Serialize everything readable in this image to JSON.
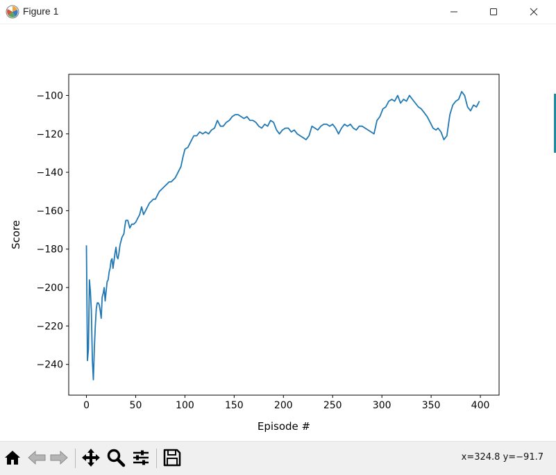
{
  "window": {
    "title": "Figure 1",
    "icon": "matplotlib-figure-icon",
    "controls": [
      "minimize-icon",
      "maximize-icon",
      "close-icon"
    ]
  },
  "toolbar": {
    "tools": [
      "home-icon",
      "back-arrow-icon",
      "forward-arrow-icon",
      "pan-move-icon",
      "zoom-magnifier-icon",
      "configure-subplots-icon",
      "save-floppy-icon"
    ],
    "coords": "x=324.8 y=−91.7"
  },
  "chart_data": {
    "type": "line",
    "title": "",
    "xlabel": "Episode #",
    "ylabel": "Score",
    "xlim": [
      -18,
      419
    ],
    "ylim": [
      -256,
      -89
    ],
    "xticks": [
      0,
      50,
      100,
      150,
      200,
      250,
      300,
      350,
      400
    ],
    "yticks": [
      -240,
      -220,
      -200,
      -180,
      -160,
      -140,
      -120,
      -100
    ],
    "grid": false,
    "line_color": "#1f77b4",
    "series": [
      {
        "x": [
          0,
          1,
          2,
          3,
          4,
          5,
          6,
          7,
          8,
          9,
          10,
          11,
          12,
          13,
          14,
          15,
          16,
          17,
          18,
          19,
          20,
          21,
          22,
          23,
          24,
          25,
          26,
          27,
          28,
          29,
          30,
          31,
          32,
          33,
          34,
          35,
          36,
          37,
          38,
          39,
          40,
          42,
          44,
          46,
          48,
          50,
          52,
          54,
          56,
          58,
          60,
          62,
          64,
          66,
          68,
          70,
          72,
          74,
          76,
          78,
          80,
          82,
          84,
          86,
          88,
          90,
          92,
          94,
          96,
          98,
          100,
          103,
          106,
          109,
          112,
          115,
          118,
          121,
          124,
          127,
          130,
          133,
          136,
          139,
          142,
          145,
          148,
          151,
          154,
          157,
          160,
          163,
          166,
          169,
          172,
          175,
          178,
          181,
          184,
          187,
          190,
          193,
          196,
          199,
          202,
          205,
          208,
          211,
          214,
          217,
          220,
          223,
          226,
          229,
          232,
          235,
          238,
          241,
          244,
          247,
          250,
          253,
          256,
          259,
          262,
          265,
          268,
          271,
          274,
          277,
          280,
          283,
          286,
          289,
          292,
          295,
          298,
          301,
          304,
          307,
          310,
          313,
          316,
          319,
          322,
          325,
          328,
          331,
          334,
          337,
          340,
          343,
          346,
          349,
          352,
          355,
          357,
          360,
          363,
          366,
          369,
          372,
          375,
          378,
          381,
          384,
          387,
          390,
          393,
          396,
          399
        ],
        "values": [
          -178,
          -238,
          -232,
          -196,
          -202,
          -212,
          -238,
          -248,
          -232,
          -220,
          -211,
          -208,
          -208,
          -209,
          -212,
          -216,
          -205,
          -203,
          -200,
          -207,
          -202,
          -197,
          -196,
          -192,
          -190,
          -186,
          -185,
          -190,
          -186,
          -182,
          -179,
          -184,
          -185,
          -182,
          -178,
          -176,
          -174,
          -173,
          -172,
          -168,
          -165,
          -165,
          -169,
          -167,
          -167,
          -166,
          -164,
          -162,
          -158,
          -162,
          -160,
          -158,
          -156,
          -155,
          -154,
          -154,
          -152,
          -150,
          -149,
          -148,
          -147,
          -146,
          -145,
          -145,
          -144,
          -143,
          -141,
          -139,
          -137,
          -132,
          -128,
          -127,
          -124,
          -121,
          -121,
          -119,
          -120,
          -119,
          -120,
          -118,
          -117,
          -113,
          -116,
          -116,
          -114,
          -113,
          -111,
          -110,
          -110,
          -111,
          -112,
          -111,
          -113,
          -113,
          -114,
          -116,
          -117,
          -115,
          -116,
          -113,
          -114,
          -118,
          -120,
          -118,
          -117,
          -117,
          -119,
          -118,
          -120,
          -121,
          -122,
          -123,
          -121,
          -116,
          -117,
          -118,
          -116,
          -115,
          -115,
          -116,
          -115,
          -117,
          -120,
          -117,
          -115,
          -116,
          -115,
          -117,
          -118,
          -116,
          -116,
          -117,
          -118,
          -119,
          -120,
          -113,
          -111,
          -107,
          -106,
          -103,
          -102,
          -103,
          -100,
          -104,
          -102,
          -103,
          -100,
          -102,
          -104,
          -106,
          -107,
          -109,
          -111,
          -114,
          -117,
          -118,
          -117,
          -119,
          -123,
          -121,
          -110,
          -105,
          -103,
          -102,
          -98,
          -100,
          -106,
          -108,
          -105,
          -106,
          -103
        ]
      }
    ]
  }
}
